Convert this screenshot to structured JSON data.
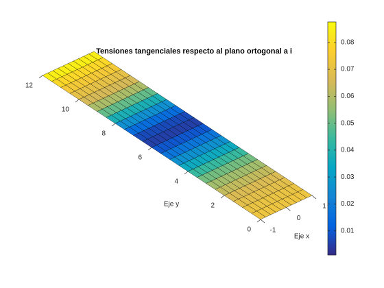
{
  "chart_data": {
    "type": "surface",
    "title": "Tensiones tangenciales respecto al plano ortogonal a i",
    "xlabel": "Eje x",
    "ylabel": "Eje y",
    "x": [
      -1,
      -0.8,
      -0.6,
      -0.4,
      -0.2,
      0,
      0.2,
      0.4,
      0.6,
      0.8,
      1
    ],
    "y": [
      0,
      0.5,
      1,
      1.5,
      2,
      2.5,
      3,
      3.5,
      4,
      4.5,
      5,
      5.5,
      6,
      6.5,
      7,
      7.5,
      8,
      8.5,
      9,
      9.5,
      10,
      10.5,
      11,
      11.5,
      12
    ],
    "values": [
      [
        0.072,
        0.072,
        0.072,
        0.072,
        0.072,
        0.072,
        0.072,
        0.072,
        0.072,
        0.072,
        0.072
      ],
      [
        0.072,
        0.072,
        0.072,
        0.072,
        0.072,
        0.072,
        0.072,
        0.072,
        0.072,
        0.072,
        0.072
      ],
      [
        0.07,
        0.07,
        0.07,
        0.07,
        0.07,
        0.07,
        0.07,
        0.07,
        0.07,
        0.07,
        0.07
      ],
      [
        0.068,
        0.068,
        0.068,
        0.068,
        0.068,
        0.068,
        0.068,
        0.068,
        0.068,
        0.068,
        0.068
      ],
      [
        0.065,
        0.065,
        0.065,
        0.065,
        0.065,
        0.065,
        0.065,
        0.065,
        0.065,
        0.065,
        0.065
      ],
      [
        0.06,
        0.06,
        0.06,
        0.06,
        0.06,
        0.06,
        0.06,
        0.06,
        0.06,
        0.06,
        0.06
      ],
      [
        0.055,
        0.055,
        0.055,
        0.055,
        0.055,
        0.055,
        0.055,
        0.055,
        0.055,
        0.055,
        0.055
      ],
      [
        0.048,
        0.048,
        0.048,
        0.048,
        0.048,
        0.048,
        0.048,
        0.048,
        0.048,
        0.048,
        0.048
      ],
      [
        0.04,
        0.04,
        0.04,
        0.04,
        0.04,
        0.04,
        0.04,
        0.04,
        0.04,
        0.04,
        0.04
      ],
      [
        0.031,
        0.031,
        0.031,
        0.031,
        0.031,
        0.031,
        0.031,
        0.031,
        0.031,
        0.031,
        0.031
      ],
      [
        0.022,
        0.022,
        0.022,
        0.022,
        0.022,
        0.022,
        0.022,
        0.022,
        0.022,
        0.022,
        0.022
      ],
      [
        0.013,
        0.013,
        0.013,
        0.013,
        0.013,
        0.013,
        0.013,
        0.013,
        0.013,
        0.013,
        0.013
      ],
      [
        0.006,
        0.006,
        0.006,
        0.006,
        0.006,
        0.006,
        0.006,
        0.006,
        0.006,
        0.006,
        0.006
      ],
      [
        0.004,
        0.004,
        0.004,
        0.004,
        0.004,
        0.004,
        0.004,
        0.004,
        0.004,
        0.004,
        0.004
      ],
      [
        0.01,
        0.01,
        0.01,
        0.01,
        0.01,
        0.01,
        0.01,
        0.01,
        0.01,
        0.01,
        0.01
      ],
      [
        0.02,
        0.02,
        0.02,
        0.02,
        0.02,
        0.02,
        0.02,
        0.02,
        0.02,
        0.02,
        0.02
      ],
      [
        0.032,
        0.032,
        0.032,
        0.032,
        0.032,
        0.032,
        0.032,
        0.032,
        0.032,
        0.032,
        0.032
      ],
      [
        0.044,
        0.044,
        0.044,
        0.044,
        0.044,
        0.044,
        0.044,
        0.044,
        0.044,
        0.044,
        0.044
      ],
      [
        0.055,
        0.055,
        0.055,
        0.055,
        0.055,
        0.055,
        0.055,
        0.055,
        0.055,
        0.055,
        0.055
      ],
      [
        0.063,
        0.063,
        0.063,
        0.063,
        0.063,
        0.063,
        0.063,
        0.063,
        0.063,
        0.063,
        0.063
      ],
      [
        0.068,
        0.068,
        0.068,
        0.068,
        0.068,
        0.068,
        0.068,
        0.068,
        0.068,
        0.068,
        0.068
      ],
      [
        0.072,
        0.072,
        0.072,
        0.072,
        0.072,
        0.072,
        0.072,
        0.072,
        0.072,
        0.072,
        0.072
      ],
      [
        0.076,
        0.076,
        0.076,
        0.076,
        0.076,
        0.076,
        0.076,
        0.076,
        0.076,
        0.076,
        0.076
      ],
      [
        0.082,
        0.082,
        0.082,
        0.082,
        0.082,
        0.082,
        0.082,
        0.082,
        0.082,
        0.082,
        0.082
      ],
      [
        0.087,
        0.087,
        0.087,
        0.087,
        0.087,
        0.087,
        0.087,
        0.087,
        0.087,
        0.087,
        0.087
      ]
    ],
    "xlim": [
      -1,
      1
    ],
    "ylim": [
      0,
      12
    ],
    "xticks": [
      -1,
      0,
      1
    ],
    "yticks": [
      0,
      2,
      4,
      6,
      8,
      10,
      12
    ],
    "clim": [
      0.001,
      0.0876
    ],
    "cticks": [
      0.01,
      0.02,
      0.03,
      0.04,
      0.05,
      0.06,
      0.07,
      0.08
    ],
    "colormap": [
      "#352a87",
      "#0363e1",
      "#1485d4",
      "#06a7c6",
      "#38b99e",
      "#92bf73",
      "#d9ba56",
      "#fcce2e",
      "#f9fb0e"
    ]
  }
}
